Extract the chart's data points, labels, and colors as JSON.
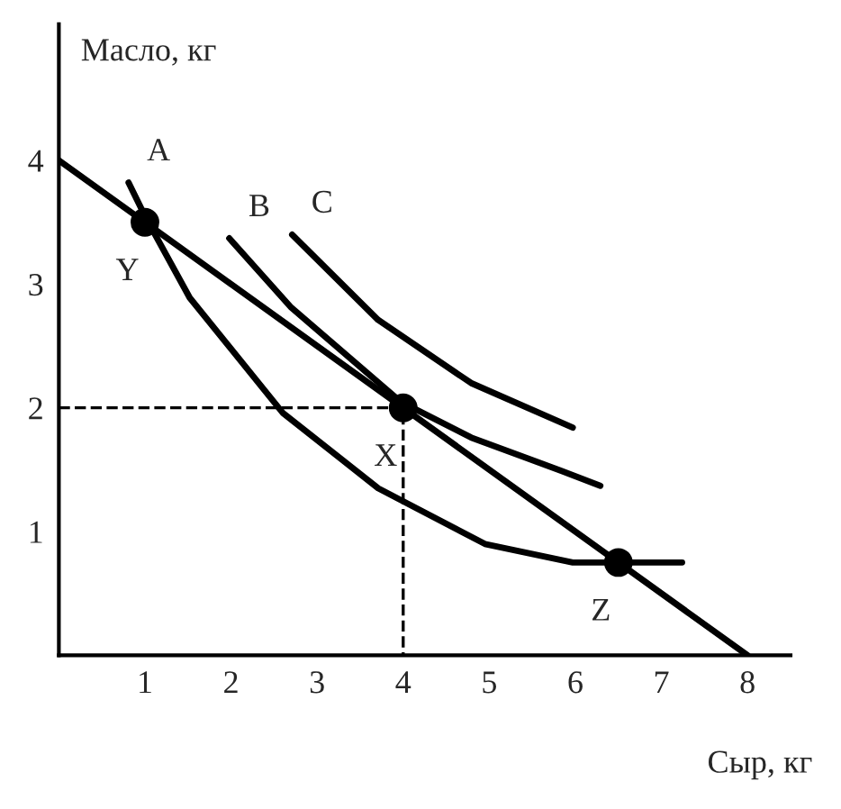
{
  "chart_data": {
    "type": "line",
    "xlabel": "Сыр, кг",
    "ylabel": "Масло, кг",
    "xlim": [
      0,
      8.5
    ],
    "ylim": [
      0,
      5.1
    ],
    "xticks": [
      1,
      2,
      3,
      4,
      5,
      6,
      7,
      8
    ],
    "yticks": [
      1,
      2,
      3,
      4
    ],
    "grid": false,
    "legend": false,
    "marker": "none",
    "line_style": "solid",
    "series": [
      {
        "color": "#000000",
        "x": [
          0,
          8
        ],
        "values": [
          4,
          0
        ]
      },
      {
        "color": "#000000",
        "x": [
          0.81,
          1,
          1.52,
          2.6,
          3.71,
          4.95,
          5.97,
          7.24
        ],
        "values": [
          3.82,
          3.55,
          2.89,
          1.96,
          1.35,
          0.9,
          0.75,
          0.75
        ]
      },
      {
        "color": "#000000",
        "x": [
          1.98,
          2.7,
          3.97,
          4.79,
          5.84,
          6.29
        ],
        "values": [
          3.37,
          2.81,
          2.05,
          1.76,
          1.49,
          1.37
        ]
      },
      {
        "color": "#000000",
        "x": [
          2.71,
          3.71,
          4.79,
          5.97
        ],
        "values": [
          3.4,
          2.71,
          2.2,
          1.84
        ]
      },
      {
        "color": "#000000",
        "x": [
          0,
          4,
          4
        ],
        "values": [
          2,
          2,
          0
        ],
        "line_style": "dashed"
      },
      {
        "type": "scatter",
        "color": "#000000",
        "marker": "circle",
        "x": [
          1,
          4,
          6.5
        ],
        "values": [
          3.5,
          2,
          0.75
        ]
      }
    ],
    "annotations": [
      {
        "text": "A",
        "x": 0.81,
        "y": 3.82
      },
      {
        "text": "B",
        "x": 1.98,
        "y": 3.37
      },
      {
        "text": "C",
        "x": 2.71,
        "y": 3.4
      },
      {
        "text": "Y",
        "x": 1,
        "y": 3.5
      },
      {
        "text": "X",
        "x": 4,
        "y": 2
      },
      {
        "text": "Z",
        "x": 6.5,
        "y": 0.75
      }
    ]
  }
}
